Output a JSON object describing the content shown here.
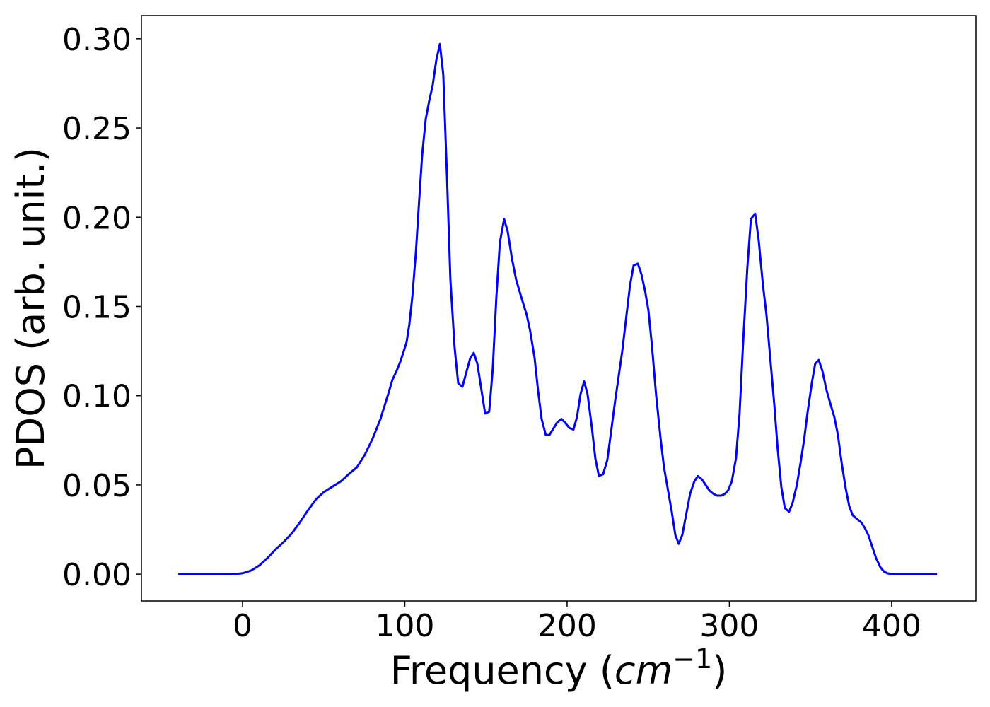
{
  "chart_data": {
    "type": "line",
    "ylabel": "PDOS (arb. unit.)",
    "xlabel": [
      "Frequency (",
      "cm",
      "−1",
      ")"
    ],
    "color": "#0000ff",
    "xlim": [
      -62.3,
      451.9
    ],
    "ylim": [
      -0.015,
      0.313
    ],
    "xticks": [
      0,
      100,
      200,
      300,
      400
    ],
    "yticks": [
      {
        "value": 0,
        "label": "0.00"
      },
      {
        "value": 0.05,
        "label": "0.05"
      },
      {
        "value": 0.1,
        "label": "0.10"
      },
      {
        "value": 0.15,
        "label": "0.15"
      },
      {
        "value": 0.2,
        "label": "0.20"
      },
      {
        "value": 0.25,
        "label": "0.25"
      },
      {
        "value": 0.3,
        "label": "0.30"
      }
    ],
    "x": [
      -39.6,
      -5.7,
      0,
      5.2,
      10.5,
      15.3,
      20.5,
      25.3,
      30.5,
      35.3,
      40.5,
      45.3,
      50.1,
      55.3,
      60.6,
      65.4,
      70.6,
      75.4,
      80.2,
      85,
      89.8,
      92.4,
      95,
      97.2,
      99,
      101.1,
      102.8,
      104.6,
      106.8,
      108.9,
      110.7,
      112.9,
      115,
      117.2,
      119.4,
      121.6,
      123.7,
      125.9,
      128.1,
      130.7,
      132.9,
      135.5,
      140.3,
      142.5,
      144.7,
      149.5,
      152,
      154.2,
      156.4,
      158.6,
      161.2,
      163.4,
      166,
      168.6,
      171.2,
      175.2,
      177.3,
      180,
      182.1,
      184.3,
      186.9,
      189.1,
      193.9,
      196.5,
      198.7,
      201.3,
      203.9,
      206.1,
      208.3,
      210.5,
      212.6,
      215.3,
      217.4,
      219.6,
      222.2,
      224.8,
      227,
      229.6,
      234,
      236.2,
      238.8,
      241,
      243.6,
      245.8,
      248,
      250.1,
      252.3,
      254.9,
      257.5,
      259.7,
      264.5,
      266.7,
      268.8,
      271,
      275.8,
      278.4,
      280.6,
      283.2,
      287.6,
      290.2,
      292.4,
      295,
      297.2,
      299.3,
      301.5,
      304.1,
      306.3,
      308.5,
      311.1,
      313.3,
      315.9,
      318.1,
      320.7,
      322.9,
      325.1,
      327.7,
      329.8,
      332,
      334.2,
      336.8,
      339,
      341.6,
      343.8,
      346,
      348.1,
      350.8,
      352.9,
      355.1,
      357.3,
      359.9,
      362.1,
      364.7,
      366.9,
      369.1,
      371.7,
      373.9,
      376,
      378.6,
      381.3,
      383.4,
      385.6,
      388.2,
      390.4,
      393,
      395.2,
      397.4,
      400.4,
      428
    ],
    "values": [
      0,
      0,
      0.0005,
      0.002,
      0.005,
      0.009,
      0.014,
      0.018,
      0.023,
      0.029,
      0.036,
      0.042,
      0.046,
      0.049,
      0.052,
      0.056,
      0.06,
      0.067,
      0.076,
      0.087,
      0.101,
      0.109,
      0.114,
      0.119,
      0.124,
      0.13,
      0.14,
      0.155,
      0.18,
      0.21,
      0.235,
      0.255,
      0.265,
      0.274,
      0.288,
      0.297,
      0.28,
      0.225,
      0.165,
      0.127,
      0.107,
      0.105,
      0.121,
      0.124,
      0.118,
      0.09,
      0.091,
      0.115,
      0.155,
      0.186,
      0.199,
      0.192,
      0.177,
      0.165,
      0.157,
      0.145,
      0.136,
      0.121,
      0.103,
      0.087,
      0.078,
      0.078,
      0.085,
      0.087,
      0.085,
      0.082,
      0.081,
      0.088,
      0.101,
      0.108,
      0.101,
      0.082,
      0.065,
      0.055,
      0.056,
      0.064,
      0.079,
      0.097,
      0.125,
      0.142,
      0.162,
      0.173,
      0.174,
      0.168,
      0.159,
      0.148,
      0.128,
      0.1,
      0.077,
      0.06,
      0.035,
      0.022,
      0.017,
      0.022,
      0.045,
      0.052,
      0.055,
      0.053,
      0.047,
      0.045,
      0.044,
      0.044,
      0.045,
      0.047,
      0.052,
      0.065,
      0.09,
      0.13,
      0.172,
      0.199,
      0.202,
      0.187,
      0.162,
      0.145,
      0.122,
      0.095,
      0.07,
      0.049,
      0.037,
      0.035,
      0.04,
      0.05,
      0.062,
      0.075,
      0.09,
      0.107,
      0.118,
      0.12,
      0.114,
      0.103,
      0.096,
      0.088,
      0.078,
      0.063,
      0.048,
      0.038,
      0.033,
      0.031,
      0.029,
      0.026,
      0.022,
      0.015,
      0.009,
      0.004,
      0.0015,
      0.0005,
      0,
      0
    ]
  }
}
